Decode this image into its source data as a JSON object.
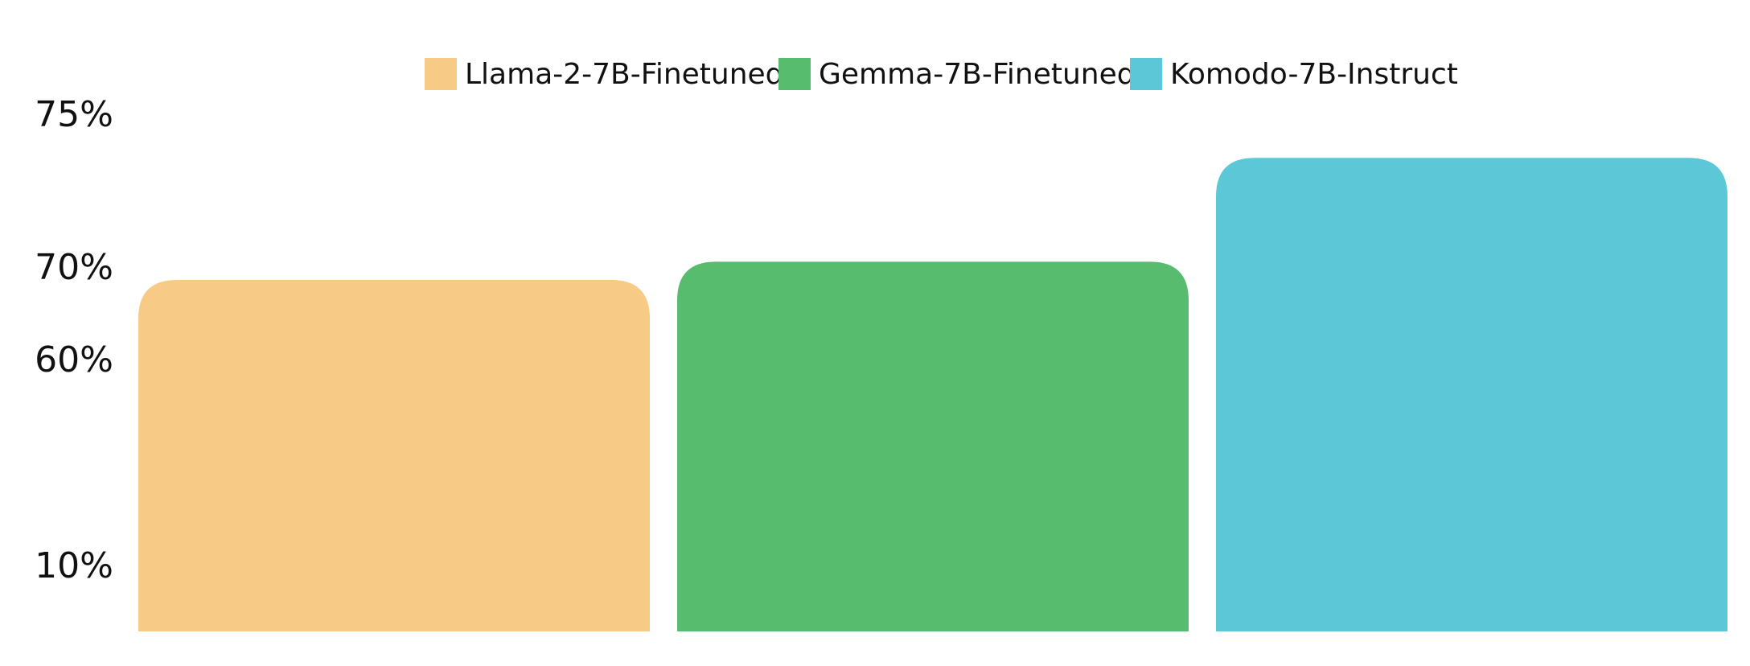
{
  "chart_data": {
    "type": "bar",
    "title": "",
    "xlabel": "",
    "ylabel": "",
    "grid": false,
    "legend_position": "top-center",
    "axis_scale": "piecewise (ticks not evenly spaced)",
    "y_ticks": [
      "75%",
      "70%",
      "60%",
      "10%"
    ],
    "y_tick_values": [
      75,
      70,
      60,
      10
    ],
    "series": [
      {
        "name": "Llama-2-7B-Finetuned",
        "value": 68.7,
        "color": "#F7CB85"
      },
      {
        "name": "Gemma-7B-Finetuned",
        "value": 70.2,
        "color": "#58BC6E"
      },
      {
        "name": "Komodo-7B-Instruct",
        "value": 73.6,
        "color": "#5BC7D7"
      }
    ]
  }
}
